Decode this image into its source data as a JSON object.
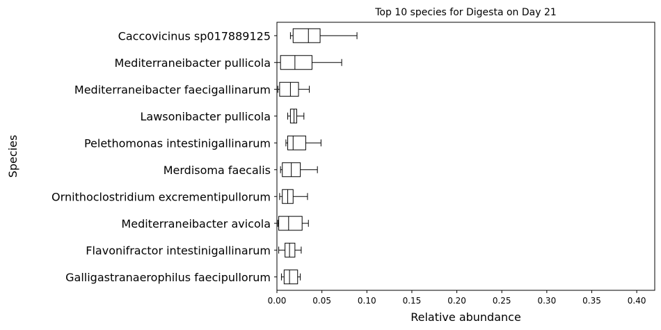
{
  "chart_data": {
    "type": "boxplot",
    "orientation": "horizontal",
    "title": "Top 10 species for Digesta on Day 21",
    "xlabel": "Relative abundance",
    "ylabel": "Species",
    "xlim": [
      0,
      0.42
    ],
    "xticks": [
      0.0,
      0.05,
      0.1,
      0.15,
      0.2,
      0.25,
      0.3,
      0.35,
      0.4
    ],
    "xtick_labels": [
      "0.00",
      "0.05",
      "0.10",
      "0.15",
      "0.20",
      "0.25",
      "0.30",
      "0.35",
      "0.40"
    ],
    "grid": false,
    "categories": [
      "Caccovicinus sp017889125",
      "Mediterraneibacter pullicola",
      "Mediterraneibacter faecigallinarum",
      "Lawsonibacter pullicola",
      "Pelethomonas intestinigallinarum",
      "Merdisoma faecalis",
      "Ornithoclostridium excrementipullorum",
      "Mediterraneibacter avicola",
      "Flavonifractor intestinigallinarum",
      "Galligastranaerophilus faecipullorum"
    ],
    "boxes": [
      {
        "whislo": 0.015,
        "q1": 0.018,
        "med": 0.035,
        "q3": 0.048,
        "whishi": 0.089
      },
      {
        "whislo": 0.0,
        "q1": 0.004,
        "med": 0.02,
        "q3": 0.039,
        "whishi": 0.072
      },
      {
        "whislo": 0.001,
        "q1": 0.003,
        "med": 0.015,
        "q3": 0.024,
        "whishi": 0.036
      },
      {
        "whislo": 0.012,
        "q1": 0.015,
        "med": 0.019,
        "q3": 0.022,
        "whishi": 0.03
      },
      {
        "whislo": 0.01,
        "q1": 0.012,
        "med": 0.018,
        "q3": 0.032,
        "whishi": 0.049
      },
      {
        "whislo": 0.004,
        "q1": 0.006,
        "med": 0.016,
        "q3": 0.026,
        "whishi": 0.045
      },
      {
        "whislo": 0.003,
        "q1": 0.006,
        "med": 0.012,
        "q3": 0.018,
        "whishi": 0.034
      },
      {
        "whislo": 0.001,
        "q1": 0.002,
        "med": 0.013,
        "q3": 0.028,
        "whishi": 0.035
      },
      {
        "whislo": 0.002,
        "q1": 0.009,
        "med": 0.014,
        "q3": 0.02,
        "whishi": 0.027
      },
      {
        "whislo": 0.005,
        "q1": 0.008,
        "med": 0.014,
        "q3": 0.023,
        "whishi": 0.026
      }
    ]
  }
}
